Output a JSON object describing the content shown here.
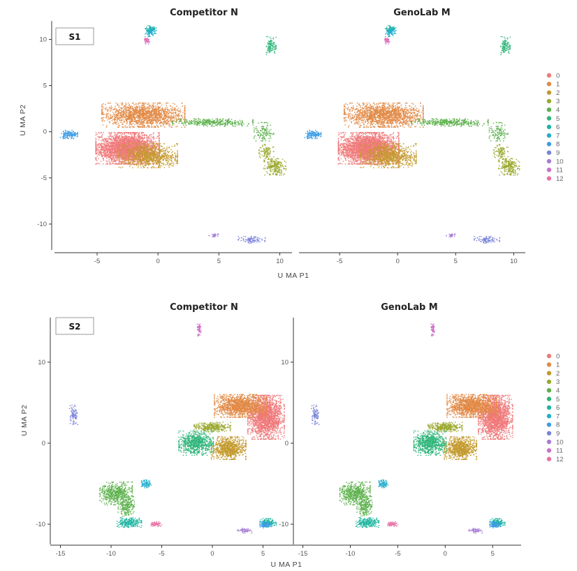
{
  "figure": {
    "charts": [
      {
        "sample_label": "S1",
        "panel_titles": [
          "Competitor N",
          "GenoLab M"
        ],
        "xlabel": "U MA P1",
        "ylabel": "U MA P2"
      },
      {
        "sample_label": "S2",
        "panel_titles": [
          "Competitor N",
          "GenoLab M"
        ],
        "xlabel": "U MA P1",
        "ylabel": "U MA P2"
      }
    ],
    "legend_labels": [
      "0",
      "1",
      "2",
      "3",
      "4",
      "5",
      "6",
      "7",
      "8",
      "9",
      "10",
      "11",
      "12"
    ]
  },
  "chart_data": [
    {
      "type": "scatter",
      "title": "Competitor N",
      "sample": "S1",
      "xlabel": "U MA P1",
      "ylabel": "U MA P2",
      "xlim": [
        -8.5,
        11
      ],
      "ylim": [
        -12.8,
        12
      ],
      "xticks": [
        -5,
        0,
        5,
        10
      ],
      "yticks": [
        -10,
        -5,
        0,
        5,
        10
      ],
      "legend": "right",
      "clusters": [
        {
          "name": "0",
          "color": "#F0797A",
          "points": [
            [
              -2.5,
              -1.8,
              2.6,
              1.7,
              2800
            ]
          ]
        },
        {
          "name": "1",
          "color": "#E28A45",
          "points": [
            [
              -1.2,
              1.8,
              3.4,
              1.3,
              1500
            ]
          ]
        },
        {
          "name": "2",
          "color": "#C49A2E",
          "points": [
            [
              -0.8,
              -2.6,
              2.4,
              1.3,
              900
            ]
          ]
        },
        {
          "name": "3",
          "color": "#9AA82E",
          "points": [
            [
              9.6,
              -3.8,
              0.9,
              0.9,
              220
            ],
            [
              8.9,
              -2.2,
              0.6,
              0.8,
              90
            ]
          ]
        },
        {
          "name": "4",
          "color": "#5BB04A",
          "points": [
            [
              4.5,
              1.0,
              3.3,
              0.4,
              350
            ],
            [
              8.7,
              0.0,
              0.8,
              1.0,
              110
            ]
          ]
        },
        {
          "name": "5",
          "color": "#2FB57A",
          "points": [
            [
              9.3,
              9.3,
              0.4,
              1.0,
              110
            ]
          ]
        },
        {
          "name": "6",
          "color": "#1FB5A0",
          "points": [
            [
              -0.6,
              11.1,
              0.45,
              0.4,
              60
            ]
          ]
        },
        {
          "name": "7",
          "color": "#20AECC",
          "points": [
            [
              -0.6,
              10.8,
              0.45,
              0.5,
              70
            ]
          ]
        },
        {
          "name": "8",
          "color": "#3C9CE5",
          "points": [
            [
              -7.3,
              -0.3,
              0.7,
              0.45,
              140
            ]
          ]
        },
        {
          "name": "9",
          "color": "#7A83D8",
          "points": [
            [
              7.7,
              -11.7,
              1.1,
              0.35,
              90
            ]
          ]
        },
        {
          "name": "10",
          "color": "#A77CD6",
          "points": [
            [
              4.6,
              -11.2,
              0.4,
              0.2,
              30
            ]
          ]
        },
        {
          "name": "11",
          "color": "#CC6FC7",
          "points": [
            [
              -0.9,
              9.8,
              0.25,
              0.3,
              25
            ]
          ]
        },
        {
          "name": "12",
          "color": "#E872A4",
          "points": [
            [
              -1.0,
              10.0,
              0.2,
              0.2,
              15
            ]
          ]
        }
      ]
    },
    {
      "type": "scatter",
      "title": "GenoLab M",
      "sample": "S1",
      "xlabel": "U MA P1",
      "ylabel": "U MA P2",
      "xlim": [
        -8.5,
        11
      ],
      "ylim": [
        -12.8,
        12
      ],
      "xticks": [
        -5,
        0,
        5,
        10
      ],
      "yticks": [
        -10,
        -5,
        0,
        5,
        10
      ],
      "legend": "right",
      "clusters": [
        {
          "name": "0",
          "color": "#F0797A",
          "points": [
            [
              -2.5,
              -1.8,
              2.6,
              1.7,
              2800
            ]
          ]
        },
        {
          "name": "1",
          "color": "#E28A45",
          "points": [
            [
              -1.2,
              1.8,
              3.4,
              1.3,
              1500
            ]
          ]
        },
        {
          "name": "2",
          "color": "#C49A2E",
          "points": [
            [
              -0.8,
              -2.6,
              2.4,
              1.3,
              900
            ]
          ]
        },
        {
          "name": "3",
          "color": "#9AA82E",
          "points": [
            [
              9.6,
              -3.8,
              0.9,
              0.9,
              220
            ],
            [
              8.9,
              -2.2,
              0.6,
              0.8,
              90
            ]
          ]
        },
        {
          "name": "4",
          "color": "#5BB04A",
          "points": [
            [
              4.5,
              1.0,
              3.3,
              0.4,
              350
            ],
            [
              8.7,
              0.0,
              0.8,
              1.0,
              110
            ]
          ]
        },
        {
          "name": "5",
          "color": "#2FB57A",
          "points": [
            [
              9.3,
              9.3,
              0.4,
              1.0,
              110
            ]
          ]
        },
        {
          "name": "6",
          "color": "#1FB5A0",
          "points": [
            [
              -0.6,
              11.1,
              0.45,
              0.4,
              60
            ]
          ]
        },
        {
          "name": "7",
          "color": "#20AECC",
          "points": [
            [
              -0.6,
              10.8,
              0.45,
              0.5,
              70
            ]
          ]
        },
        {
          "name": "8",
          "color": "#3C9CE5",
          "points": [
            [
              -7.3,
              -0.3,
              0.7,
              0.45,
              140
            ]
          ]
        },
        {
          "name": "9",
          "color": "#7A83D8",
          "points": [
            [
              7.7,
              -11.7,
              1.1,
              0.35,
              90
            ]
          ]
        },
        {
          "name": "10",
          "color": "#A77CD6",
          "points": [
            [
              4.6,
              -11.2,
              0.4,
              0.2,
              30
            ]
          ]
        },
        {
          "name": "11",
          "color": "#CC6FC7",
          "points": [
            [
              -0.9,
              9.8,
              0.25,
              0.3,
              25
            ]
          ]
        },
        {
          "name": "12",
          "color": "#E872A4",
          "points": [
            [
              -1.0,
              10.0,
              0.2,
              0.2,
              15
            ]
          ]
        }
      ]
    },
    {
      "type": "scatter",
      "title": "Competitor N",
      "sample": "S2",
      "xlabel": "U MA P1",
      "ylabel": "U MA P2",
      "xlim": [
        -16,
        8
      ],
      "ylim": [
        -12.5,
        15.5
      ],
      "xticks": [
        -15,
        -10,
        -5,
        0,
        5
      ],
      "yticks": [
        -10,
        0,
        10
      ],
      "legend": "right",
      "clusters": [
        {
          "name": "0",
          "color": "#F0797A",
          "points": [
            [
              5.3,
              3.2,
              1.8,
              2.7,
              1800
            ]
          ]
        },
        {
          "name": "1",
          "color": "#E28A45",
          "points": [
            [
              2.8,
              4.6,
              2.6,
              1.4,
              1300
            ]
          ]
        },
        {
          "name": "2",
          "color": "#C49A2E",
          "points": [
            [
              1.6,
              -0.6,
              1.7,
              1.4,
              800
            ]
          ]
        },
        {
          "name": "3",
          "color": "#9AA82E",
          "points": [
            [
              0.0,
              2.0,
              1.8,
              0.6,
              300
            ]
          ]
        },
        {
          "name": "4",
          "color": "#5BB04A",
          "points": [
            [
              -9.5,
              -6.2,
              1.6,
              1.4,
              500
            ],
            [
              -8.5,
              -7.8,
              0.8,
              1.2,
              200
            ]
          ]
        },
        {
          "name": "5",
          "color": "#2FB57A",
          "points": [
            [
              -1.6,
              0.0,
              1.7,
              1.5,
              700
            ]
          ]
        },
        {
          "name": "6",
          "color": "#1FB5A0",
          "points": [
            [
              -8.2,
              -9.8,
              1.2,
              0.6,
              220
            ],
            [
              5.5,
              -9.8,
              0.8,
              0.5,
              140
            ]
          ]
        },
        {
          "name": "7",
          "color": "#20AECC",
          "points": [
            [
              -6.6,
              -5.0,
              0.6,
              0.5,
              80
            ]
          ]
        },
        {
          "name": "8",
          "color": "#3C9CE5",
          "points": [
            [
              5.3,
              -10.1,
              0.6,
              0.4,
              90
            ]
          ]
        },
        {
          "name": "9",
          "color": "#7A83D8",
          "points": [
            [
              -13.7,
              3.5,
              0.4,
              1.2,
              80
            ]
          ]
        },
        {
          "name": "10",
          "color": "#A77CD6",
          "points": [
            [
              3.2,
              -10.8,
              0.7,
              0.3,
              60
            ]
          ]
        },
        {
          "name": "11",
          "color": "#CC6FC7",
          "points": [
            [
              -1.3,
              14.0,
              0.18,
              0.8,
              50
            ]
          ]
        },
        {
          "name": "12",
          "color": "#E872A4",
          "points": [
            [
              -5.6,
              -10.0,
              0.6,
              0.3,
              60
            ]
          ]
        }
      ]
    },
    {
      "type": "scatter",
      "title": "GenoLab M",
      "sample": "S2",
      "xlabel": "U MA P1",
      "ylabel": "U MA P2",
      "xlim": [
        -16,
        8
      ],
      "ylim": [
        -12.5,
        15.5
      ],
      "xticks": [
        -15,
        -10,
        -5,
        0,
        5
      ],
      "yticks": [
        -10,
        0,
        10
      ],
      "legend": "right",
      "clusters": [
        {
          "name": "0",
          "color": "#F0797A",
          "points": [
            [
              5.3,
              3.2,
              1.8,
              2.7,
              1800
            ]
          ]
        },
        {
          "name": "1",
          "color": "#E28A45",
          "points": [
            [
              2.8,
              4.6,
              2.6,
              1.4,
              1300
            ]
          ]
        },
        {
          "name": "2",
          "color": "#C49A2E",
          "points": [
            [
              1.6,
              -0.6,
              1.7,
              1.4,
              800
            ]
          ]
        },
        {
          "name": "3",
          "color": "#9AA82E",
          "points": [
            [
              0.0,
              2.0,
              1.8,
              0.6,
              300
            ]
          ]
        },
        {
          "name": "4",
          "color": "#5BB04A",
          "points": [
            [
              -9.5,
              -6.2,
              1.6,
              1.4,
              500
            ],
            [
              -8.5,
              -7.8,
              0.8,
              1.2,
              200
            ]
          ]
        },
        {
          "name": "5",
          "color": "#2FB57A",
          "points": [
            [
              -1.6,
              0.0,
              1.7,
              1.5,
              700
            ]
          ]
        },
        {
          "name": "6",
          "color": "#1FB5A0",
          "points": [
            [
              -8.2,
              -9.8,
              1.2,
              0.6,
              220
            ],
            [
              5.5,
              -9.8,
              0.8,
              0.5,
              140
            ]
          ]
        },
        {
          "name": "7",
          "color": "#20AECC",
          "points": [
            [
              -6.6,
              -5.0,
              0.6,
              0.5,
              80
            ]
          ]
        },
        {
          "name": "8",
          "color": "#3C9CE5",
          "points": [
            [
              5.3,
              -10.1,
              0.6,
              0.4,
              90
            ]
          ]
        },
        {
          "name": "9",
          "color": "#7A83D8",
          "points": [
            [
              -13.7,
              3.5,
              0.4,
              1.2,
              80
            ]
          ]
        },
        {
          "name": "10",
          "color": "#A77CD6",
          "points": [
            [
              3.2,
              -10.8,
              0.7,
              0.3,
              60
            ]
          ]
        },
        {
          "name": "11",
          "color": "#CC6FC7",
          "points": [
            [
              -1.3,
              14.0,
              0.18,
              0.8,
              50
            ]
          ]
        },
        {
          "name": "12",
          "color": "#E872A4",
          "points": [
            [
              -5.6,
              -10.0,
              0.6,
              0.3,
              60
            ]
          ]
        }
      ]
    }
  ]
}
